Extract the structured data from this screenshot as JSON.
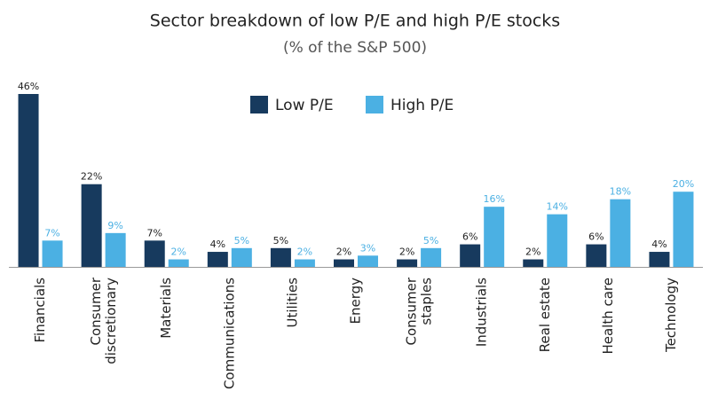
{
  "chart_data": {
    "type": "bar",
    "title": "Sector breakdown of low P/E and high P/E stocks",
    "subtitle": "(% of the S&P 500)",
    "categories": [
      "Financials",
      "Consumer\ndiscretionary",
      "Materials",
      "Communications",
      "Utilities",
      "Energy",
      "Consumer\nstaples",
      "Industrials",
      "Real estate",
      "Health care",
      "Technology"
    ],
    "series": [
      {
        "name": "Low P/E",
        "color": "#173a5e",
        "values": [
          46,
          22,
          7,
          4,
          5,
          2,
          2,
          6,
          2,
          6,
          4
        ],
        "value_labels": [
          "46%",
          "22%",
          "7%",
          "4%",
          "5%",
          "2%",
          "2%",
          "6%",
          "2%",
          "6%",
          "4%"
        ]
      },
      {
        "name": "High P/E",
        "color": "#4bb0e3",
        "values": [
          7,
          9,
          2,
          5,
          2,
          3,
          5,
          16,
          14,
          18,
          20
        ],
        "value_labels": [
          "7%",
          "9%",
          "2%",
          "5%",
          "2%",
          "3%",
          "5%",
          "16%",
          "14%",
          "18%",
          "20%"
        ]
      }
    ],
    "legend": "top-center"
  }
}
